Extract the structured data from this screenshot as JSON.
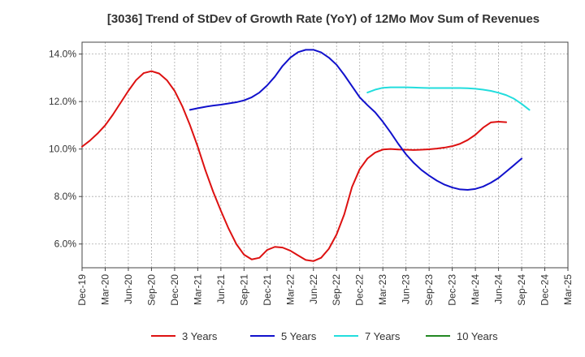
{
  "chart_data": {
    "type": "line",
    "title": "[3036]  Trend of StDev of Growth Rate (YoY) of 12Mo Mov Sum of Revenues",
    "xlabel": "",
    "ylabel": "",
    "ylim": [
      5.0,
      14.5
    ],
    "yticks": [
      6.0,
      8.0,
      10.0,
      12.0,
      14.0
    ],
    "ytick_labels": [
      "6.0%",
      "8.0%",
      "10.0%",
      "12.0%",
      "14.0%"
    ],
    "xticks": [
      "Dec-19",
      "Mar-20",
      "Jun-20",
      "Sep-20",
      "Dec-20",
      "Mar-21",
      "Jun-21",
      "Sep-21",
      "Dec-21",
      "Mar-22",
      "Jun-22",
      "Sep-22",
      "Dec-22",
      "Mar-23",
      "Jun-23",
      "Sep-23",
      "Dec-23",
      "Mar-24",
      "Jun-24",
      "Sep-24",
      "Dec-24",
      "Mar-25"
    ],
    "grid": true,
    "legend_position": "bottom",
    "series": [
      {
        "name": "3 Years",
        "color": "#dd1111",
        "start_index": 0,
        "values": [
          10.1,
          10.35,
          10.65,
          11.0,
          11.45,
          11.95,
          12.45,
          12.9,
          13.2,
          13.28,
          13.18,
          12.9,
          12.45,
          11.8,
          11.0,
          10.1,
          9.1,
          8.2,
          7.4,
          6.65,
          6.0,
          5.55,
          5.35,
          5.42,
          5.75,
          5.88,
          5.85,
          5.72,
          5.52,
          5.33,
          5.28,
          5.42,
          5.8,
          6.4,
          7.25,
          8.4,
          9.15,
          9.6,
          9.85,
          9.98,
          10.0,
          9.98,
          9.97,
          9.96,
          9.97,
          9.99,
          10.02,
          10.06,
          10.12,
          10.22,
          10.38,
          10.6,
          10.9,
          11.12,
          11.15,
          11.13
        ]
      },
      {
        "name": "5 Years",
        "color": "#1111cc",
        "start_index": 14,
        "values": [
          11.65,
          11.72,
          11.78,
          11.83,
          11.87,
          11.92,
          11.97,
          12.05,
          12.18,
          12.38,
          12.68,
          13.05,
          13.5,
          13.85,
          14.08,
          14.18,
          14.18,
          14.07,
          13.85,
          13.55,
          13.12,
          12.65,
          12.18,
          11.85,
          11.55,
          11.15,
          10.7,
          10.22,
          9.78,
          9.42,
          9.12,
          8.88,
          8.67,
          8.5,
          8.38,
          8.3,
          8.28,
          8.32,
          8.42,
          8.58,
          8.78,
          9.05,
          9.32,
          9.6
        ]
      },
      {
        "name": "7 Years",
        "color": "#22dddd",
        "start_index": 37,
        "values": [
          12.38,
          12.5,
          12.58,
          12.6,
          12.6,
          12.6,
          12.59,
          12.58,
          12.57,
          12.57,
          12.57,
          12.57,
          12.57,
          12.56,
          12.54,
          12.5,
          12.45,
          12.37,
          12.27,
          12.12,
          11.9,
          11.65
        ]
      },
      {
        "name": "10 Years",
        "color": "#228822",
        "start_index": 0,
        "values": []
      }
    ]
  }
}
